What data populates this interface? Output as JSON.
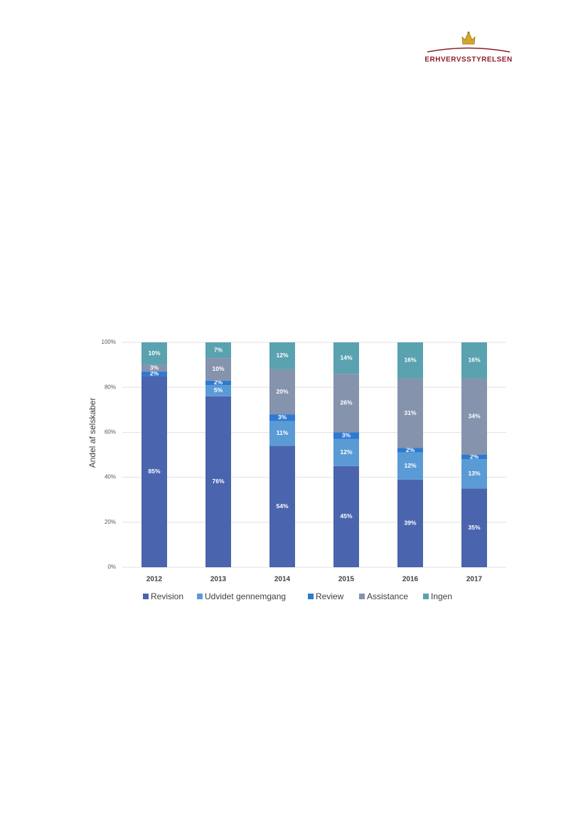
{
  "header": {
    "logo_text": "ERHVERVSSTYRELSEN"
  },
  "chart_data": {
    "type": "stacked_bar",
    "y_label": "Andel af selskaber",
    "categories": [
      "2012",
      "2013",
      "2014",
      "2015",
      "2016",
      "2017"
    ],
    "series": [
      {
        "name": "Revision",
        "color": "#4a65ae",
        "values": [
          85,
          76,
          54,
          45,
          39,
          35
        ],
        "value_labels": [
          "85%",
          "76%",
          "54%",
          "45%",
          "39%",
          "35%"
        ]
      },
      {
        "name": "Udvidet gennemgang",
        "color": "#5b9bd5",
        "values": [
          0,
          5,
          11,
          12,
          12,
          13
        ],
        "value_labels": [
          null,
          "5%",
          "11%",
          "12%",
          "12%",
          "13%"
        ]
      },
      {
        "name": "Review",
        "color": "#2e7ad1",
        "values": [
          2,
          2,
          3,
          3,
          2,
          2
        ],
        "value_labels": [
          "2%",
          "2%",
          "3%",
          "3%",
          "2%",
          "2%"
        ]
      },
      {
        "name": "Assistance",
        "color": "#8593ad",
        "values": [
          3,
          10,
          20,
          26,
          31,
          34
        ],
        "value_labels": [
          "3%",
          "10%",
          "20%",
          "26%",
          "31%",
          "34%"
        ]
      },
      {
        "name": "Ingen",
        "color": "#5aa2b0",
        "values": [
          10,
          7,
          12,
          14,
          16,
          16
        ],
        "value_labels": [
          "10%",
          "7%",
          "12%",
          "14%",
          "16%",
          "16%"
        ]
      }
    ],
    "ylim": [
      0,
      100
    ],
    "yticks": [
      {
        "value": 0,
        "label": "0%"
      },
      {
        "value": 20,
        "label": "20%"
      },
      {
        "value": 40,
        "label": "40%"
      },
      {
        "value": 60,
        "label": "60%"
      },
      {
        "value": 80,
        "label": "80%"
      },
      {
        "value": 100,
        "label": "100%"
      }
    ],
    "grid": true,
    "legend": "bottom"
  }
}
